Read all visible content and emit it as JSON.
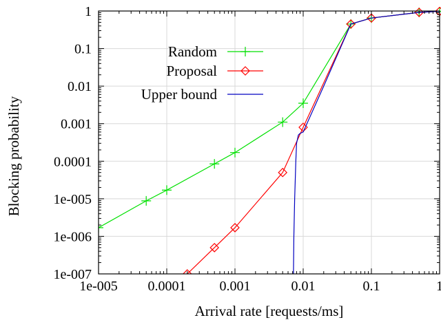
{
  "chart_data": {
    "type": "line",
    "xscale": "log",
    "yscale": "log",
    "xlim": [
      1e-05,
      1
    ],
    "ylim": [
      1e-07,
      1
    ],
    "grid": true,
    "legend_position": "top-left",
    "xlabel": "Arrival rate [requests/ms]",
    "ylabel": "Blocking probability",
    "x_ticks": [
      {
        "value": 1e-05,
        "label": "1e-005"
      },
      {
        "value": 0.0001,
        "label": "0.0001"
      },
      {
        "value": 0.001,
        "label": "0.001"
      },
      {
        "value": 0.01,
        "label": "0.01"
      },
      {
        "value": 0.1,
        "label": "0.1"
      },
      {
        "value": 1,
        "label": "1"
      }
    ],
    "y_ticks": [
      {
        "value": 1,
        "label": "1"
      },
      {
        "value": 0.1,
        "label": "0.1"
      },
      {
        "value": 0.01,
        "label": "0.01"
      },
      {
        "value": 0.001,
        "label": "0.001"
      },
      {
        "value": 0.0001,
        "label": "0.0001"
      },
      {
        "value": 1e-05,
        "label": "1e-005"
      },
      {
        "value": 1e-06,
        "label": "1e-006"
      },
      {
        "value": 1e-07,
        "label": "1e-007"
      }
    ],
    "series": [
      {
        "name": "Random",
        "color": "#00e000",
        "marker": "plus",
        "x": [
          1e-05,
          5e-05,
          0.0001,
          0.0005,
          0.001,
          0.005,
          0.01,
          0.05,
          0.1,
          0.5,
          1
        ],
        "y": [
          1.7e-06,
          8.8e-06,
          1.7e-05,
          8.5e-05,
          0.00017,
          0.0011,
          0.0035,
          0.45,
          0.65,
          0.92,
          0.98
        ]
      },
      {
        "name": "Proposal",
        "color": "#ff0000",
        "marker": "diamond",
        "x": [
          0.0002,
          0.0005,
          0.001,
          0.005,
          0.01,
          0.05,
          0.1,
          0.5,
          1
        ],
        "y": [
          1e-07,
          5e-07,
          1.7e-06,
          5e-05,
          0.0008,
          0.45,
          0.65,
          0.92,
          0.98
        ]
      },
      {
        "name": "Upper bound",
        "color": "#0000c0",
        "marker": "none",
        "x": [
          0.0072,
          0.0073,
          0.0075,
          0.0078,
          0.008,
          0.0085,
          0.009,
          0.01,
          0.02,
          0.05,
          0.1,
          0.5,
          1
        ],
        "y": [
          1e-07,
          1e-06,
          1e-05,
          0.0001,
          0.0003,
          0.0005,
          0.00055,
          0.0006,
          0.01,
          0.45,
          0.65,
          0.92,
          0.98
        ]
      }
    ]
  }
}
